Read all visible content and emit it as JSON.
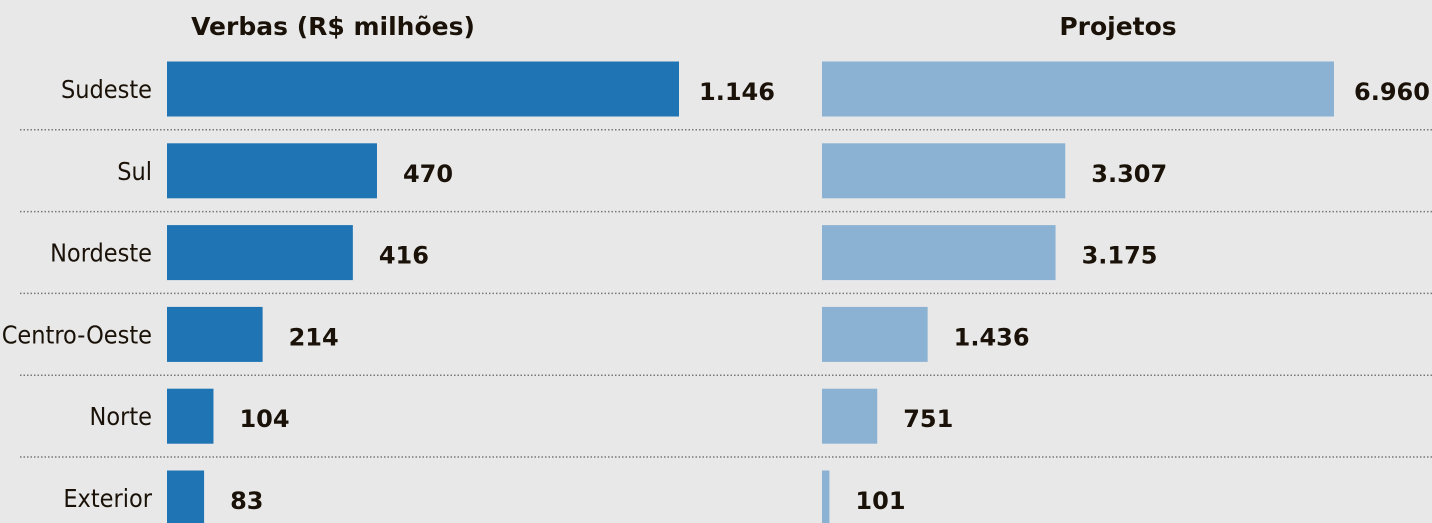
{
  "chart_data": {
    "type": "bar",
    "orientation": "horizontal",
    "categories": [
      "Sudeste",
      "Sul",
      "Nordeste",
      "Centro-Oeste",
      "Norte",
      "Exterior"
    ],
    "series": [
      {
        "name": "Verbas (R$ milhões)",
        "color": "#1f74b4",
        "values": [
          1146,
          470,
          416,
          214,
          104,
          83
        ],
        "value_labels": [
          "1.146",
          "470",
          "416",
          "214",
          "104",
          "83"
        ]
      },
      {
        "name": "Projetos",
        "color": "#8cb2d3",
        "values": [
          6960,
          3307,
          3175,
          1436,
          751,
          101
        ],
        "value_labels": [
          "6.960",
          "3.307",
          "3.175",
          "1.436",
          "751",
          "101"
        ]
      }
    ]
  }
}
